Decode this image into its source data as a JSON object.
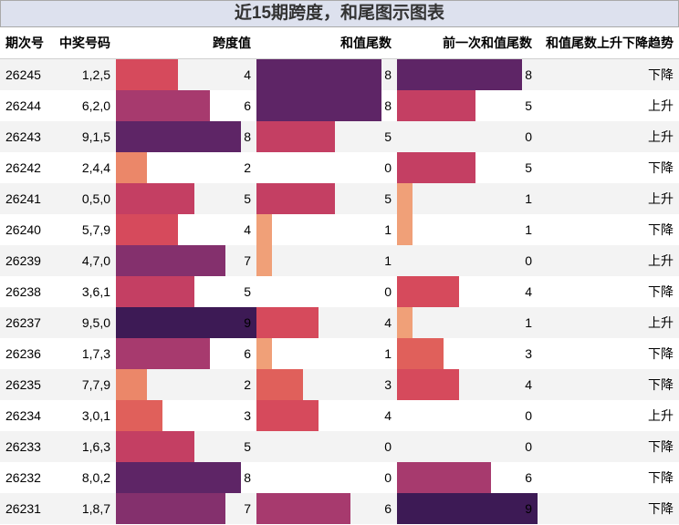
{
  "title": "近15期跨度，和尾图示图表",
  "headers": {
    "issue": "期次号",
    "numbers": "中奖号码",
    "span": "跨度值",
    "tail": "和值尾数",
    "prev_tail": "前一次和值尾数",
    "trend": "和值尾数上升下降趋势"
  },
  "colors": {
    "0": "#f2a27a",
    "1": "#f0a078",
    "2": "#eb8769",
    "3": "#e0605b",
    "4": "#d64a5c",
    "5": "#c43f63",
    "6": "#a73a6e",
    "7": "#84306d",
    "8": "#5e2566",
    "9": "#3d1a55"
  },
  "rows": [
    {
      "issue": "26245",
      "numbers": "1,2,5",
      "span": 4,
      "tail": 8,
      "prev_tail": 8,
      "trend": "下降"
    },
    {
      "issue": "26244",
      "numbers": "6,2,0",
      "span": 6,
      "tail": 8,
      "prev_tail": 5,
      "trend": "上升"
    },
    {
      "issue": "26243",
      "numbers": "9,1,5",
      "span": 8,
      "tail": 5,
      "prev_tail": 0,
      "trend": "上升"
    },
    {
      "issue": "26242",
      "numbers": "2,4,4",
      "span": 2,
      "tail": 0,
      "prev_tail": 5,
      "trend": "下降"
    },
    {
      "issue": "26241",
      "numbers": "0,5,0",
      "span": 5,
      "tail": 5,
      "prev_tail": 1,
      "trend": "上升"
    },
    {
      "issue": "26240",
      "numbers": "5,7,9",
      "span": 4,
      "tail": 1,
      "prev_tail": 1,
      "trend": "下降"
    },
    {
      "issue": "26239",
      "numbers": "4,7,0",
      "span": 7,
      "tail": 1,
      "prev_tail": 0,
      "trend": "上升"
    },
    {
      "issue": "26238",
      "numbers": "3,6,1",
      "span": 5,
      "tail": 0,
      "prev_tail": 4,
      "trend": "下降"
    },
    {
      "issue": "26237",
      "numbers": "9,5,0",
      "span": 9,
      "tail": 4,
      "prev_tail": 1,
      "trend": "上升"
    },
    {
      "issue": "26236",
      "numbers": "1,7,3",
      "span": 6,
      "tail": 1,
      "prev_tail": 3,
      "trend": "下降"
    },
    {
      "issue": "26235",
      "numbers": "7,7,9",
      "span": 2,
      "tail": 3,
      "prev_tail": 4,
      "trend": "下降"
    },
    {
      "issue": "26234",
      "numbers": "3,0,1",
      "span": 3,
      "tail": 4,
      "prev_tail": 0,
      "trend": "上升"
    },
    {
      "issue": "26233",
      "numbers": "1,6,3",
      "span": 5,
      "tail": 0,
      "prev_tail": 0,
      "trend": "下降"
    },
    {
      "issue": "26232",
      "numbers": "8,0,2",
      "span": 8,
      "tail": 0,
      "prev_tail": 6,
      "trend": "下降"
    },
    {
      "issue": "26231",
      "numbers": "1,8,7",
      "span": 7,
      "tail": 6,
      "prev_tail": 9,
      "trend": "下降"
    }
  ]
}
